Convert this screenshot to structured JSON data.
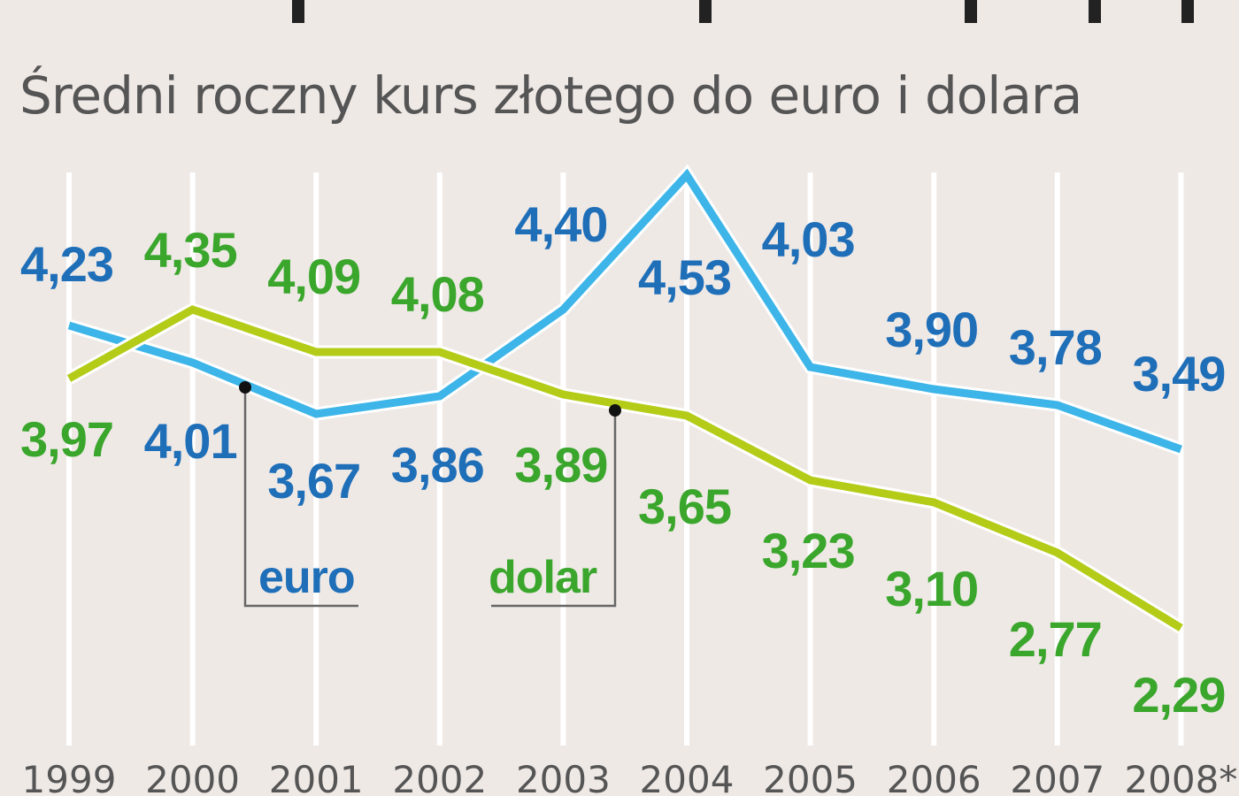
{
  "chart_data": {
    "type": "line",
    "title": "Średni roczny kurs złotego do euro i dolara",
    "categories": [
      "1999",
      "2000",
      "2001",
      "2002",
      "2003",
      "2004",
      "2005",
      "2006",
      "2007",
      "2008*"
    ],
    "series": [
      {
        "name": "euro",
        "line_color": "#3db5e8",
        "label_color": "#1f6fb8",
        "labels": [
          "4,23",
          "4,01",
          "3,67",
          "3,86",
          "4,40",
          "4,53",
          "4,03",
          "3,90",
          "3,78",
          "3,49"
        ],
        "values": [
          4.23,
          4.01,
          3.67,
          3.86,
          4.4,
          4.53,
          4.03,
          3.9,
          3.78,
          3.49
        ]
      },
      {
        "name": "dolar",
        "line_color": "#b4cc18",
        "label_color": "#3aa62c",
        "labels": [
          "3,97",
          "4,35",
          "4,09",
          "4,08",
          "3,89",
          "3,65",
          "3,23",
          "3,10",
          "2,77",
          "2,29"
        ],
        "values": [
          3.97,
          4.35,
          4.09,
          4.08,
          3.89,
          3.65,
          3.23,
          3.1,
          2.77,
          2.29
        ]
      }
    ],
    "xlabel": "",
    "ylabel": "",
    "grid": "vertical",
    "legend": [
      "euro",
      "dolar"
    ]
  }
}
